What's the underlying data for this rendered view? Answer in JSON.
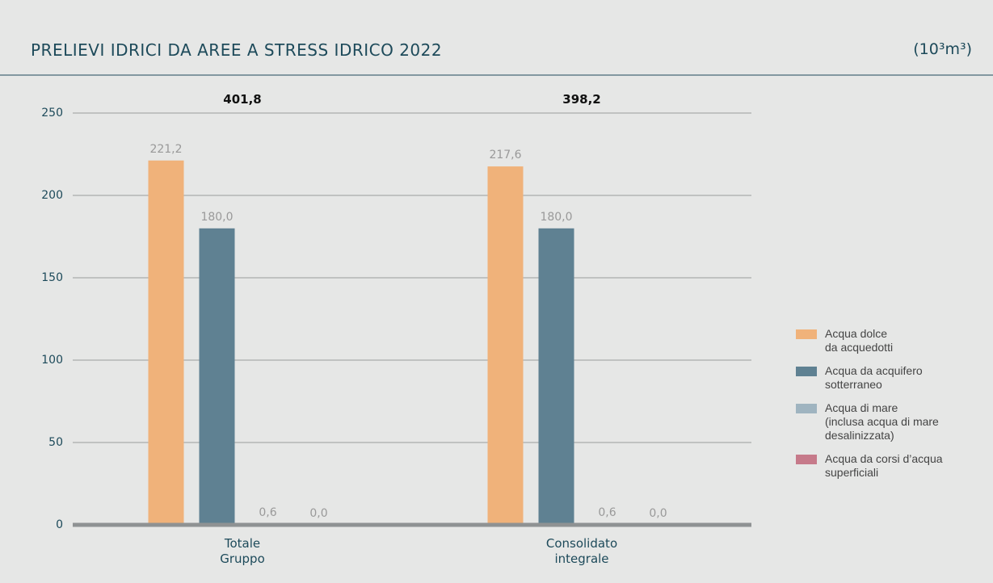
{
  "chart_data": {
    "type": "bar",
    "title": "PRELIEVI IDRICI DA AREE A STRESS IDRICO 2022",
    "unit": "(10³m³)",
    "categories": [
      "Totale\nGruppo",
      "Consolidato\nintegrale"
    ],
    "series": [
      {
        "name": "Acqua dolce\nda acquedotti",
        "color": "#f0b27a",
        "values": [
          221.2,
          217.6
        ],
        "value_labels": [
          "221,2",
          "217,6"
        ]
      },
      {
        "name": "Acqua da acquifero\nsotterraneo",
        "color": "#5f8192",
        "values": [
          180.0,
          180.0
        ],
        "value_labels": [
          "180,0",
          "180,0"
        ]
      },
      {
        "name": "Acqua di mare\n(inclusa acqua di mare\ndesalinizzata)",
        "color": "#9fb4c0",
        "values": [
          0.6,
          0.6
        ],
        "value_labels": [
          "0,6",
          "0,6"
        ]
      },
      {
        "name": "Acqua da corsi d’acqua\nsuperficiali",
        "color": "#c67a8a",
        "values": [
          0.0,
          0.0
        ],
        "value_labels": [
          "0,0",
          "0,0"
        ]
      }
    ],
    "annotations": [
      {
        "value": 401.8,
        "label": "401,8"
      },
      {
        "value": 398.2,
        "label": "398,2"
      }
    ],
    "ylim": [
      0,
      250
    ],
    "yticks": [
      0,
      50,
      100,
      150,
      200,
      250
    ],
    "grid": true,
    "legend": "right"
  }
}
